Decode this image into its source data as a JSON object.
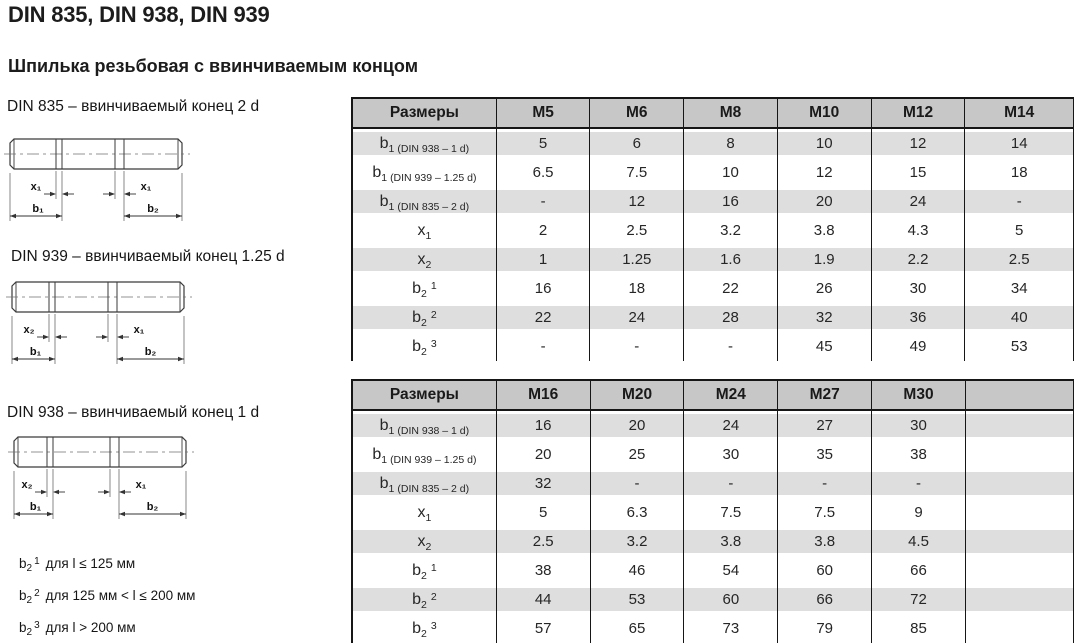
{
  "page": {
    "title": "DIN 835, DIN 938, DIN 939",
    "subtitle": "Шпилька резьбовая с ввинчиваемым концом"
  },
  "colors": {
    "header_bg": "#c7c7c7",
    "row_shade": "#dedede",
    "border": "#161616",
    "text": "#262626"
  },
  "drawings": [
    {
      "caption": "DIN 835 – ввинчиваемый конец 2 d",
      "labels": {
        "x_left": "x₁",
        "x_right": "x₁",
        "b_left": "b₁",
        "b_right": "b₂"
      }
    },
    {
      "caption": "DIN 939 – ввинчиваемый конец 1.25 d",
      "labels": {
        "x_left": "x₂",
        "x_right": "x₁",
        "b_left": "b₁",
        "b_right": "b₂"
      }
    },
    {
      "caption": "DIN 938 – ввинчиваемый конец 1 d",
      "labels": {
        "x_left": "x₂",
        "x_right": "x₁",
        "b_left": "b₁",
        "b_right": "b₂"
      }
    }
  ],
  "tables": [
    {
      "headers": [
        "Размеры",
        "M5",
        "M6",
        "M8",
        "M10",
        "M12",
        "M14"
      ],
      "rows": [
        {
          "shaded": true,
          "label": {
            "base": "b",
            "sub": "1",
            "note": "(DIN 938 – 1 d)",
            "sup": ""
          },
          "values": [
            "5",
            "6",
            "8",
            "10",
            "12",
            "14"
          ]
        },
        {
          "shaded": false,
          "label": {
            "base": "b",
            "sub": "1",
            "note": "(DIN 939 – 1.25 d)",
            "sup": ""
          },
          "values": [
            "6.5",
            "7.5",
            "10",
            "12",
            "15",
            "18"
          ]
        },
        {
          "shaded": true,
          "label": {
            "base": "b",
            "sub": "1",
            "note": "(DIN 835 – 2 d)",
            "sup": ""
          },
          "values": [
            "-",
            "12",
            "16",
            "20",
            "24",
            "-"
          ]
        },
        {
          "shaded": false,
          "label": {
            "base": "x",
            "sub": "1",
            "note": "",
            "sup": ""
          },
          "values": [
            "2",
            "2.5",
            "3.2",
            "3.8",
            "4.3",
            "5"
          ]
        },
        {
          "shaded": true,
          "label": {
            "base": "x",
            "sub": "2",
            "note": "",
            "sup": ""
          },
          "values": [
            "1",
            "1.25",
            "1.6",
            "1.9",
            "2.2",
            "2.5"
          ]
        },
        {
          "shaded": false,
          "label": {
            "base": "b",
            "sub": "2",
            "note": "",
            "sup": "1"
          },
          "values": [
            "16",
            "18",
            "22",
            "26",
            "30",
            "34"
          ]
        },
        {
          "shaded": true,
          "label": {
            "base": "b",
            "sub": "2",
            "note": "",
            "sup": "2"
          },
          "values": [
            "22",
            "24",
            "28",
            "32",
            "36",
            "40"
          ]
        },
        {
          "shaded": false,
          "label": {
            "base": "b",
            "sub": "2",
            "note": "",
            "sup": "3"
          },
          "values": [
            "-",
            "-",
            "-",
            "45",
            "49",
            "53"
          ]
        }
      ]
    },
    {
      "headers": [
        "Размеры",
        "M16",
        "M20",
        "M24",
        "M27",
        "M30",
        ""
      ],
      "rows": [
        {
          "shaded": true,
          "label": {
            "base": "b",
            "sub": "1",
            "note": "(DIN 938 – 1 d)",
            "sup": ""
          },
          "values": [
            "16",
            "20",
            "24",
            "27",
            "30",
            ""
          ]
        },
        {
          "shaded": false,
          "label": {
            "base": "b",
            "sub": "1",
            "note": "(DIN 939 – 1.25 d)",
            "sup": ""
          },
          "values": [
            "20",
            "25",
            "30",
            "35",
            "38",
            ""
          ]
        },
        {
          "shaded": true,
          "label": {
            "base": "b",
            "sub": "1",
            "note": "(DIN 835 – 2 d)",
            "sup": ""
          },
          "values": [
            "32",
            "-",
            "-",
            "-",
            "-",
            ""
          ]
        },
        {
          "shaded": false,
          "label": {
            "base": "x",
            "sub": "1",
            "note": "",
            "sup": ""
          },
          "values": [
            "5",
            "6.3",
            "7.5",
            "7.5",
            "9",
            ""
          ]
        },
        {
          "shaded": true,
          "label": {
            "base": "x",
            "sub": "2",
            "note": "",
            "sup": ""
          },
          "values": [
            "2.5",
            "3.2",
            "3.8",
            "3.8",
            "4.5",
            ""
          ]
        },
        {
          "shaded": false,
          "label": {
            "base": "b",
            "sub": "2",
            "note": "",
            "sup": "1"
          },
          "values": [
            "38",
            "46",
            "54",
            "60",
            "66",
            ""
          ]
        },
        {
          "shaded": true,
          "label": {
            "base": "b",
            "sub": "2",
            "note": "",
            "sup": "2"
          },
          "values": [
            "44",
            "53",
            "60",
            "66",
            "72",
            ""
          ]
        },
        {
          "shaded": false,
          "label": {
            "base": "b",
            "sub": "2",
            "note": "",
            "sup": "3"
          },
          "values": [
            "57",
            "65",
            "73",
            "79",
            "85",
            ""
          ]
        }
      ]
    }
  ],
  "footnotes": [
    {
      "base": "b",
      "sub": "2",
      "sup": "1",
      "text": "для l ≤ 125 мм"
    },
    {
      "base": "b",
      "sub": "2",
      "sup": "2",
      "text": "для 125 мм < l ≤ 200 мм"
    },
    {
      "base": "b",
      "sub": "2",
      "sup": "3",
      "text": "для l > 200 мм"
    }
  ]
}
